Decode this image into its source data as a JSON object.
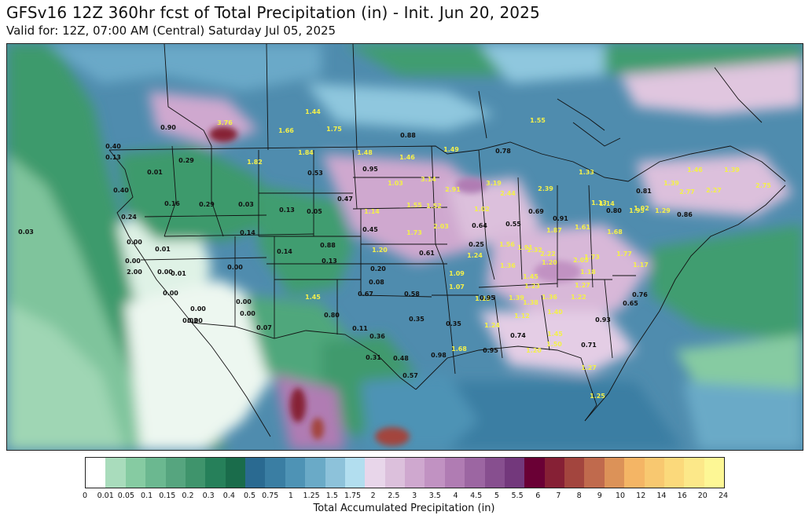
{
  "header": {
    "title": "GFSv16 12Z 360hr fcst of Total Precipitation (in) - Init. Jun 20, 2025",
    "subtitle": "Valid for: 12Z, 07:00 AM (Central) Saturday Jul 05, 2025"
  },
  "legend": {
    "label": "Total Accumulated Precipitation (in)",
    "ticks": [
      "0",
      "0.01",
      "0.05",
      "0.1",
      "0.15",
      "0.2",
      "0.3",
      "0.4",
      "0.5",
      "0.75",
      "1",
      "1.25",
      "1.5",
      "1.75",
      "2",
      "2.5",
      "3",
      "3.5",
      "4",
      "4.5",
      "5",
      "5.5",
      "6",
      "7",
      "8",
      "9",
      "10",
      "12",
      "14",
      "16",
      "20",
      "24"
    ],
    "colors": [
      "#ffffff",
      "#a9dcbc",
      "#86cba2",
      "#6bb890",
      "#56a57f",
      "#3f946c",
      "#26805a",
      "#1a6c4b",
      "#2a6a91",
      "#3a7ea3",
      "#4e93b5",
      "#6aaac7",
      "#8dc2da",
      "#b2deef",
      "#e8d6ea",
      "#dcc0dc",
      "#cfa8cf",
      "#c192c2",
      "#b07cb3",
      "#9c66a2",
      "#874f8f",
      "#73387c",
      "#6a0035",
      "#862035",
      "#a3453e",
      "#c06a4d",
      "#dc9258",
      "#f4b565",
      "#f8c870",
      "#fbd97b",
      "#fce889",
      "#fdf795"
    ]
  },
  "map": {
    "values": [
      {
        "label": "0.90",
        "color": "black"
      },
      {
        "label": "3.76",
        "color": "yellow"
      },
      {
        "label": "1.44",
        "color": "yellow"
      },
      {
        "label": "1.66",
        "color": "yellow"
      },
      {
        "label": "1.75",
        "color": "yellow"
      },
      {
        "label": "0.88",
        "color": "black"
      },
      {
        "label": "1.55",
        "color": "yellow"
      },
      {
        "label": "0.40",
        "color": "black"
      },
      {
        "label": "0.13",
        "color": "black"
      },
      {
        "label": "0.01",
        "color": "black"
      },
      {
        "label": "0.29",
        "color": "black"
      },
      {
        "label": "1.82",
        "color": "yellow"
      },
      {
        "label": "1.84",
        "color": "yellow"
      },
      {
        "label": "1.48",
        "color": "yellow"
      },
      {
        "label": "1.46",
        "color": "yellow"
      },
      {
        "label": "1.49",
        "color": "yellow"
      },
      {
        "label": "0.78",
        "color": "black"
      },
      {
        "label": "0.95",
        "color": "black"
      },
      {
        "label": "0.53",
        "color": "black"
      },
      {
        "label": "1.03",
        "color": "yellow"
      },
      {
        "label": "3.14",
        "color": "yellow"
      },
      {
        "label": "2.91",
        "color": "yellow"
      },
      {
        "label": "3.19",
        "color": "yellow"
      },
      {
        "label": "2.44",
        "color": "yellow"
      },
      {
        "label": "2.39",
        "color": "yellow"
      },
      {
        "label": "1.33",
        "color": "yellow"
      },
      {
        "label": "1.46",
        "color": "yellow"
      },
      {
        "label": "1.39",
        "color": "yellow"
      },
      {
        "label": "0.40",
        "color": "black"
      },
      {
        "label": "0.16",
        "color": "black"
      },
      {
        "label": "0.29",
        "color": "black"
      },
      {
        "label": "0.03",
        "color": "black"
      },
      {
        "label": "0.47",
        "color": "black"
      },
      {
        "label": "0.13",
        "color": "black"
      },
      {
        "label": "0.05",
        "color": "black"
      },
      {
        "label": "1.14",
        "color": "yellow"
      },
      {
        "label": "1.55",
        "color": "yellow"
      },
      {
        "label": "1.52",
        "color": "yellow"
      },
      {
        "label": "1.02",
        "color": "yellow"
      },
      {
        "label": "0.69",
        "color": "black"
      },
      {
        "label": "0.91",
        "color": "black"
      },
      {
        "label": "1.13",
        "color": "yellow"
      },
      {
        "label": "0.81",
        "color": "black"
      },
      {
        "label": "1.39",
        "color": "yellow"
      },
      {
        "label": "2.75",
        "color": "yellow"
      },
      {
        "label": "2.27",
        "color": "yellow"
      },
      {
        "label": "2.77",
        "color": "yellow"
      },
      {
        "label": "1.92",
        "color": "yellow"
      },
      {
        "label": "0.24",
        "color": "black"
      },
      {
        "label": "1.14",
        "color": "yellow"
      },
      {
        "label": "0.80",
        "color": "black"
      },
      {
        "label": "1.95",
        "color": "yellow"
      },
      {
        "label": "1.29",
        "color": "yellow"
      },
      {
        "label": "0.86",
        "color": "black"
      },
      {
        "label": "0.03",
        "color": "black"
      },
      {
        "label": "0.00",
        "color": "black"
      },
      {
        "label": "0.14",
        "color": "black"
      },
      {
        "label": "0.45",
        "color": "black"
      },
      {
        "label": "1.73",
        "color": "yellow"
      },
      {
        "label": "2.03",
        "color": "yellow"
      },
      {
        "label": "0.64",
        "color": "black"
      },
      {
        "label": "0.55",
        "color": "black"
      },
      {
        "label": "1.87",
        "color": "yellow"
      },
      {
        "label": "1.61",
        "color": "yellow"
      },
      {
        "label": "1.68",
        "color": "yellow"
      },
      {
        "label": "0.00",
        "color": "black"
      },
      {
        "label": "0.01",
        "color": "black"
      },
      {
        "label": "0.88",
        "color": "black"
      },
      {
        "label": "1.20",
        "color": "yellow"
      },
      {
        "label": "0.61",
        "color": "black"
      },
      {
        "label": "0.25",
        "color": "black"
      },
      {
        "label": "1.56",
        "color": "yellow"
      },
      {
        "label": "1.91",
        "color": "yellow"
      },
      {
        "label": "1.24",
        "color": "yellow"
      },
      {
        "label": "1.32",
        "color": "yellow"
      },
      {
        "label": "2.22",
        "color": "yellow"
      },
      {
        "label": "2.00",
        "color": "black"
      },
      {
        "label": "0.13",
        "color": "black"
      },
      {
        "label": "0.14",
        "color": "black"
      },
      {
        "label": "1.36",
        "color": "yellow"
      },
      {
        "label": "1.73",
        "color": "yellow"
      },
      {
        "label": "1.20",
        "color": "yellow"
      },
      {
        "label": "2.05",
        "color": "yellow"
      },
      {
        "label": "1.77",
        "color": "yellow"
      },
      {
        "label": "0.00",
        "color": "black"
      },
      {
        "label": "0.01",
        "color": "black"
      },
      {
        "label": "0.00",
        "color": "black"
      },
      {
        "label": "0.20",
        "color": "black"
      },
      {
        "label": "1.09",
        "color": "yellow"
      },
      {
        "label": "1.45",
        "color": "yellow"
      },
      {
        "label": "1.18",
        "color": "yellow"
      },
      {
        "label": "1.17",
        "color": "yellow"
      },
      {
        "label": "0.08",
        "color": "black"
      },
      {
        "label": "1.07",
        "color": "yellow"
      },
      {
        "label": "1.23",
        "color": "yellow"
      },
      {
        "label": "1.27",
        "color": "yellow"
      },
      {
        "label": "0.00",
        "color": "black"
      },
      {
        "label": "1.45",
        "color": "yellow"
      },
      {
        "label": "0.67",
        "color": "black"
      },
      {
        "label": "0.58",
        "color": "black"
      },
      {
        "label": "1.13",
        "color": "yellow"
      },
      {
        "label": "0.95",
        "color": "black"
      },
      {
        "label": "1.39",
        "color": "yellow"
      },
      {
        "label": "1.36",
        "color": "yellow"
      },
      {
        "label": "1.22",
        "color": "yellow"
      },
      {
        "label": "0.76",
        "color": "black"
      },
      {
        "label": "0.00",
        "color": "black"
      },
      {
        "label": "0.00",
        "color": "black"
      },
      {
        "label": "1.38",
        "color": "yellow"
      },
      {
        "label": "0.65",
        "color": "black"
      },
      {
        "label": "0.00",
        "color": "black"
      },
      {
        "label": "0.00",
        "color": "black"
      },
      {
        "label": "0.80",
        "color": "black"
      },
      {
        "label": "1.12",
        "color": "yellow"
      },
      {
        "label": "1.40",
        "color": "yellow"
      },
      {
        "label": "0.93",
        "color": "black"
      },
      {
        "label": "0.02",
        "color": "black"
      },
      {
        "label": "0.35",
        "color": "black"
      },
      {
        "label": "0.35",
        "color": "black"
      },
      {
        "label": "1.24",
        "color": "yellow"
      },
      {
        "label": "0.07",
        "color": "black"
      },
      {
        "label": "0.11",
        "color": "black"
      },
      {
        "label": "0.36",
        "color": "black"
      },
      {
        "label": "0.74",
        "color": "black"
      },
      {
        "label": "1.45",
        "color": "yellow"
      },
      {
        "label": "0.71",
        "color": "black"
      },
      {
        "label": "0.31",
        "color": "black"
      },
      {
        "label": "0.48",
        "color": "black"
      },
      {
        "label": "0.98",
        "color": "black"
      },
      {
        "label": "1.68",
        "color": "yellow"
      },
      {
        "label": "0.95",
        "color": "black"
      },
      {
        "label": "1.20",
        "color": "yellow"
      },
      {
        "label": "1.50",
        "color": "yellow"
      },
      {
        "label": "0.57",
        "color": "black"
      },
      {
        "label": "1.27",
        "color": "yellow"
      },
      {
        "label": "1.25",
        "color": "yellow"
      }
    ]
  }
}
